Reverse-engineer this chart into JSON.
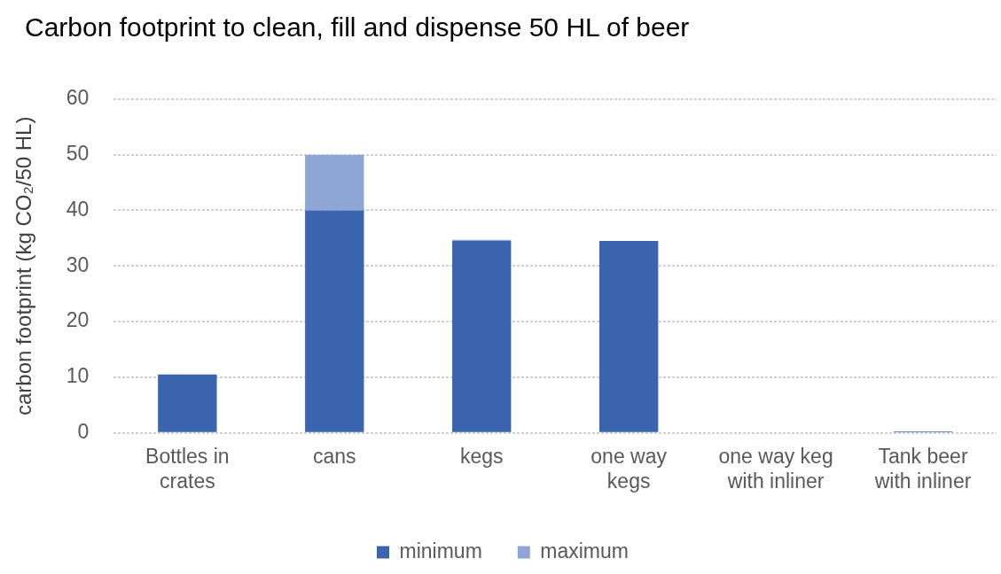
{
  "chart_data": {
    "type": "bar",
    "title": "Carbon footprint to clean, fill and dispense 50 HL of beer",
    "ylabel": "carbon footprint (kg CO₂/50 HL)",
    "categories": [
      "Bottles in\ncrates",
      "cans",
      "kegs",
      "one way\nkegs",
      "one way keg\nwith inliner",
      "Tank beer\nwith inliner"
    ],
    "series": [
      {
        "name": "minimum",
        "color": "#3a64ad",
        "values": [
          10.5,
          40,
          34.5,
          34.5,
          0,
          0.3
        ]
      },
      {
        "name": "maximum",
        "color": "#8fa5d6",
        "values": [
          0,
          10,
          0.2,
          0,
          0,
          0
        ]
      }
    ],
    "stacked": true,
    "ylim": [
      0,
      60
    ],
    "yticks": [
      0,
      10,
      20,
      30,
      40,
      50,
      60
    ],
    "grid": "y",
    "legend": "bottom"
  }
}
